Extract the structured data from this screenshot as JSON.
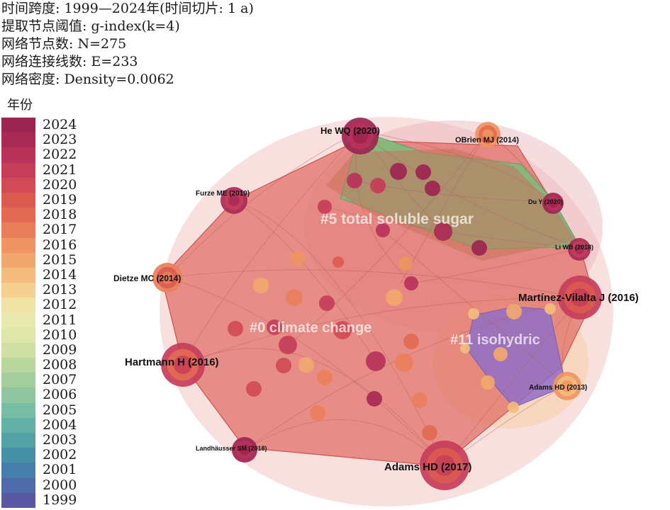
{
  "header": {
    "lines": [
      {
        "text": "时间跨度: 1999—2024年(时间切片: 1 a)"
      },
      {
        "text": "提取节点阈值: g-index(k=4)"
      },
      {
        "text": "网络节点数: N=275"
      },
      {
        "text": "网络连接线数: E=233"
      },
      {
        "text": "网络密度: Density=0.0062"
      }
    ]
  },
  "legend": {
    "title": "年份",
    "years": [
      {
        "label": "2024",
        "color": "#9c2451"
      },
      {
        "label": "2023",
        "color": "#a82a55"
      },
      {
        "label": "2022",
        "color": "#b8325a"
      },
      {
        "label": "2021",
        "color": "#c53d58"
      },
      {
        "label": "2020",
        "color": "#d24b54"
      },
      {
        "label": "2019",
        "color": "#dc5b50"
      },
      {
        "label": "2018",
        "color": "#e36b53"
      },
      {
        "label": "2017",
        "color": "#e97f5a"
      },
      {
        "label": "2016",
        "color": "#ef9462"
      },
      {
        "label": "2015",
        "color": "#f2a86d"
      },
      {
        "label": "2014",
        "color": "#f3bc7c"
      },
      {
        "label": "2013",
        "color": "#f4cf8f"
      },
      {
        "label": "2012",
        "color": "#f1e3a6"
      },
      {
        "label": "2011",
        "color": "#e8e9ad"
      },
      {
        "label": "2010",
        "color": "#dfe6a9"
      },
      {
        "label": "2009",
        "color": "#cfe0a2"
      },
      {
        "label": "2008",
        "color": "#b9d79c"
      },
      {
        "label": "2007",
        "color": "#a4cf9c"
      },
      {
        "label": "2006",
        "color": "#8fc6a0"
      },
      {
        "label": "2005",
        "color": "#78bda3"
      },
      {
        "label": "2004",
        "color": "#63b1a4"
      },
      {
        "label": "2003",
        "color": "#52a2a6"
      },
      {
        "label": "2002",
        "color": "#4791a8"
      },
      {
        "label": "2001",
        "color": "#477ea9"
      },
      {
        "label": "2000",
        "color": "#4f6aa8"
      },
      {
        "label": "1999",
        "color": "#5a58a3"
      }
    ]
  },
  "clusters": [
    {
      "id": "c0",
      "label": "#0 climate change"
    },
    {
      "id": "c5",
      "label": "#5 total soluble sugar"
    },
    {
      "id": "c11",
      "label": "#11 isohydric"
    }
  ],
  "labeled_nodes": [
    {
      "label": "He WQ (2020)"
    },
    {
      "label": "OBrien MJ (2014)"
    },
    {
      "label": "Furze ME (2019)"
    },
    {
      "label": "Du Y (2020)"
    },
    {
      "label": "Li WB (2018)"
    },
    {
      "label": "Dietze MC (2014)"
    },
    {
      "label": "Martínez-Vilalta J (2016)"
    },
    {
      "label": "Hartmann H (2016)"
    },
    {
      "label": "Adams HD (2013)"
    },
    {
      "label": "Landhäusser SM (2018)"
    },
    {
      "label": "Adams HD (2017)"
    }
  ]
}
